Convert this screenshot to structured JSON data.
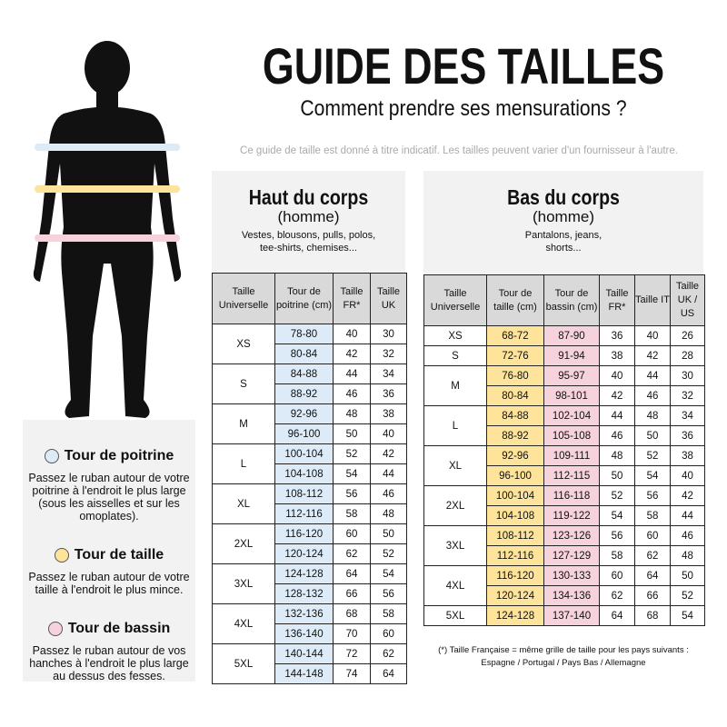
{
  "header": {
    "title": "GUIDE DES TAILLES",
    "subtitle": "Comment prendre ses mensurations ?",
    "disclaimer": "Ce guide de taille est donné à titre indicatif. Les tailles peuvent varier d'un fournisseur à l'autre."
  },
  "colors": {
    "poitrine": "#dcebf7",
    "taille": "#fde49a",
    "bassin": "#f6d3dc"
  },
  "legend": [
    {
      "title": "Tour de poitrine",
      "text": "Passez le ruban autour de votre poitrine à l'endroit le plus large (sous les aisselles et sur les omoplates)."
    },
    {
      "title": "Tour de taille",
      "text": "Passez le ruban autour de votre taille à l'endroit le plus mince."
    },
    {
      "title": "Tour de bassin",
      "text": "Passez le ruban autour de vos hanches à l'endroit le plus large au dessus des fesses."
    }
  ],
  "top": {
    "title": "Haut du corps",
    "gender": "(homme)",
    "desc": "Vestes, blousons, pulls, polos, tee-shirts, chemises...",
    "headers": [
      "Taille Universelle",
      "Tour de poitrine (cm)",
      "Taille FR*",
      "Taille UK"
    ],
    "rows": [
      [
        "XS",
        "78-80",
        "40",
        "30"
      ],
      [
        "",
        "80-84",
        "42",
        "32"
      ],
      [
        "S",
        "84-88",
        "44",
        "34"
      ],
      [
        "",
        "88-92",
        "46",
        "36"
      ],
      [
        "M",
        "92-96",
        "48",
        "38"
      ],
      [
        "",
        "96-100",
        "50",
        "40"
      ],
      [
        "L",
        "100-104",
        "52",
        "42"
      ],
      [
        "",
        "104-108",
        "54",
        "44"
      ],
      [
        "XL",
        "108-112",
        "56",
        "46"
      ],
      [
        "",
        "112-116",
        "58",
        "48"
      ],
      [
        "2XL",
        "116-120",
        "60",
        "50"
      ],
      [
        "",
        "120-124",
        "62",
        "52"
      ],
      [
        "3XL",
        "124-128",
        "64",
        "54"
      ],
      [
        "",
        "128-132",
        "66",
        "56"
      ],
      [
        "4XL",
        "132-136",
        "68",
        "58"
      ],
      [
        "",
        "136-140",
        "70",
        "60"
      ],
      [
        "5XL",
        "140-144",
        "72",
        "62"
      ],
      [
        "",
        "144-148",
        "74",
        "64"
      ]
    ]
  },
  "bottom": {
    "title": "Bas du corps",
    "gender": "(homme)",
    "desc": "Pantalons, jeans, shorts...",
    "headers": [
      "Taille Universelle",
      "Tour de taille (cm)",
      "Tour de bassin (cm)",
      "Taille FR*",
      "Taille IT",
      "Taille UK / US"
    ],
    "rows": [
      [
        "XS",
        "68-72",
        "87-90",
        "36",
        "40",
        "26"
      ],
      [
        "S",
        "72-76",
        "91-94",
        "38",
        "42",
        "28"
      ],
      [
        "M",
        "76-80",
        "95-97",
        "40",
        "44",
        "30"
      ],
      [
        "",
        "80-84",
        "98-101",
        "42",
        "46",
        "32"
      ],
      [
        "L",
        "84-88",
        "102-104",
        "44",
        "48",
        "34"
      ],
      [
        "",
        "88-92",
        "105-108",
        "46",
        "50",
        "36"
      ],
      [
        "XL",
        "92-96",
        "109-111",
        "48",
        "52",
        "38"
      ],
      [
        "",
        "96-100",
        "112-115",
        "50",
        "54",
        "40"
      ],
      [
        "2XL",
        "100-104",
        "116-118",
        "52",
        "56",
        "42"
      ],
      [
        "",
        "104-108",
        "119-122",
        "54",
        "58",
        "44"
      ],
      [
        "3XL",
        "108-112",
        "123-126",
        "56",
        "60",
        "46"
      ],
      [
        "",
        "112-116",
        "127-129",
        "58",
        "62",
        "48"
      ],
      [
        "4XL",
        "116-120",
        "130-133",
        "60",
        "64",
        "50"
      ],
      [
        "",
        "120-124",
        "134-136",
        "62",
        "66",
        "52"
      ],
      [
        "5XL",
        "124-128",
        "137-140",
        "64",
        "68",
        "54"
      ]
    ]
  },
  "footnote": "(*) Taille Française = même grille de taille pour les pays suivants : Espagne / Portugal / Pays Bas / Allemagne"
}
